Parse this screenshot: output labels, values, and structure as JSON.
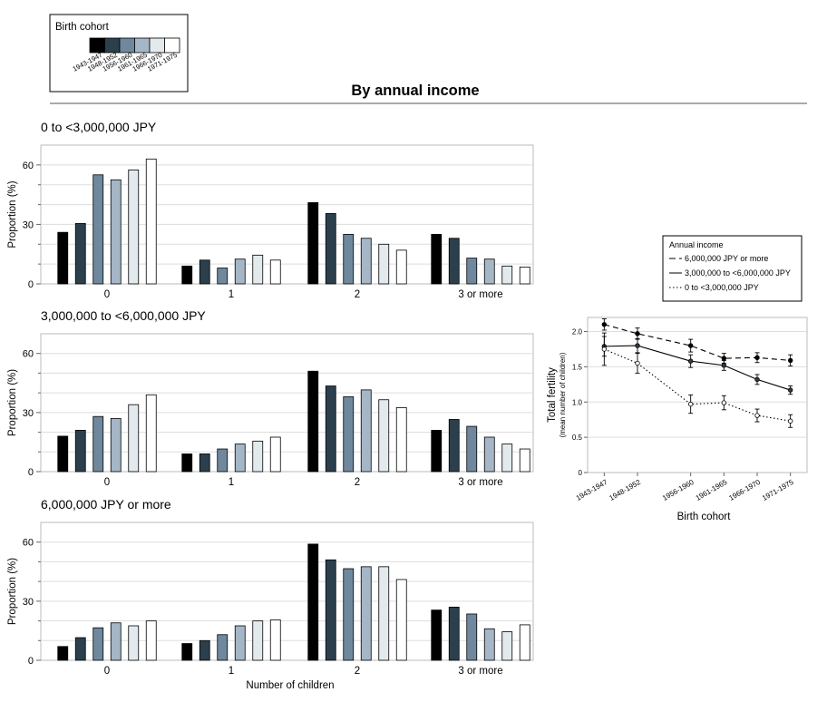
{
  "heading": "By annual income",
  "legend_cohort": {
    "title": "Birth cohort",
    "items": [
      {
        "label": "1943-1947",
        "color": "#000000"
      },
      {
        "label": "1948-1952",
        "color": "#2c3f4c"
      },
      {
        "label": "1956-1960",
        "color": "#6f889d"
      },
      {
        "label": "1961-1965",
        "color": "#a5b7c6"
      },
      {
        "label": "1966-1970",
        "color": "#e3eaee"
      },
      {
        "label": "1971-1975",
        "color": "#ffffff"
      }
    ]
  },
  "legend_income": {
    "title": "Annual income",
    "items": [
      {
        "label": "6,000,000 JPY or more",
        "style": "dashed"
      },
      {
        "label": "3,000,000 to <6,000,000 JPY",
        "style": "solid"
      },
      {
        "label": "0 to <3,000,000 JPY",
        "style": "dotted"
      }
    ]
  },
  "chart_data": [
    {
      "type": "bar",
      "title": "0 to <3,000,000 JPY",
      "ylabel": "Proportion (%)",
      "xlabel": "",
      "ylim": [
        0,
        70
      ],
      "yticks": [
        0,
        30,
        60
      ],
      "categories": [
        "0",
        "1",
        "2",
        "3 or more"
      ],
      "series": [
        {
          "name": "1943-1947",
          "values": [
            26,
            9,
            41,
            25
          ]
        },
        {
          "name": "1948-1952",
          "values": [
            30.5,
            12,
            35.5,
            23
          ]
        },
        {
          "name": "1956-1960",
          "values": [
            55,
            8,
            25,
            13
          ]
        },
        {
          "name": "1961-1965",
          "values": [
            52.5,
            12.5,
            23,
            12.5
          ]
        },
        {
          "name": "1966-1970",
          "values": [
            57.5,
            14.5,
            20,
            9
          ]
        },
        {
          "name": "1971-1975",
          "values": [
            63,
            12,
            17,
            8.5
          ]
        }
      ]
    },
    {
      "type": "bar",
      "title": "3,000,000 to <6,000,000 JPY",
      "ylabel": "Proportion (%)",
      "xlabel": "",
      "ylim": [
        0,
        70
      ],
      "yticks": [
        0,
        30,
        60
      ],
      "categories": [
        "0",
        "1",
        "2",
        "3 or more"
      ],
      "series": [
        {
          "name": "1943-1947",
          "values": [
            18,
            9,
            51,
            21
          ]
        },
        {
          "name": "1948-1952",
          "values": [
            21,
            9,
            43.5,
            26.5
          ]
        },
        {
          "name": "1956-1960",
          "values": [
            28,
            11.5,
            38,
            23
          ]
        },
        {
          "name": "1961-1965",
          "values": [
            27,
            14,
            41.5,
            17.5
          ]
        },
        {
          "name": "1966-1970",
          "values": [
            34,
            15.5,
            36.5,
            14
          ]
        },
        {
          "name": "1971-1975",
          "values": [
            39,
            17.5,
            32.5,
            11.5
          ]
        }
      ]
    },
    {
      "type": "bar",
      "title": "6,000,000 JPY or more",
      "ylabel": "Proportion (%)",
      "xlabel": "Number of children",
      "ylim": [
        0,
        70
      ],
      "yticks": [
        0,
        30,
        60
      ],
      "categories": [
        "0",
        "1",
        "2",
        "3 or more"
      ],
      "series": [
        {
          "name": "1943-1947",
          "values": [
            7,
            8.5,
            59,
            25.5
          ]
        },
        {
          "name": "1948-1952",
          "values": [
            11.5,
            10,
            51,
            27
          ]
        },
        {
          "name": "1956-1960",
          "values": [
            16.5,
            13,
            46.5,
            23.5
          ]
        },
        {
          "name": "1961-1965",
          "values": [
            19,
            17.5,
            47.5,
            16
          ]
        },
        {
          "name": "1966-1970",
          "values": [
            17.5,
            20,
            47.5,
            14.5
          ]
        },
        {
          "name": "1971-1975",
          "values": [
            20,
            20.5,
            41,
            18
          ]
        }
      ]
    },
    {
      "type": "line",
      "ylabel": "Total fertility",
      "ylabel2": "(mean number of children)",
      "xlabel": "Birth cohort",
      "ylim": [
        0,
        2.2
      ],
      "yticks": [
        0,
        0.5,
        1.0,
        1.5,
        2.0
      ],
      "x": [
        "1943-1947",
        "1948-1952",
        "1956-1960",
        "1961-1965",
        "1966-1970",
        "1971-1975"
      ],
      "x_positions": [
        1945,
        1950,
        1958,
        1963,
        1968,
        1973
      ],
      "series": [
        {
          "name": "6,000,000 JPY or more",
          "style": "dashed",
          "values": [
            2.1,
            1.97,
            1.8,
            1.62,
            1.63,
            1.59
          ],
          "err": [
            0.08,
            0.08,
            0.09,
            0.07,
            0.07,
            0.08
          ]
        },
        {
          "name": "3,000,000 to <6,000,000 JPY",
          "style": "solid",
          "values": [
            1.79,
            1.8,
            1.58,
            1.52,
            1.32,
            1.17
          ],
          "err": [
            0.14,
            0.1,
            0.09,
            0.07,
            0.07,
            0.06
          ]
        },
        {
          "name": "0 to <3,000,000 JPY",
          "style": "dotted",
          "values": [
            1.75,
            1.55,
            0.97,
            0.99,
            0.81,
            0.73
          ],
          "err": [
            0.23,
            0.14,
            0.13,
            0.1,
            0.09,
            0.09
          ]
        }
      ]
    }
  ]
}
